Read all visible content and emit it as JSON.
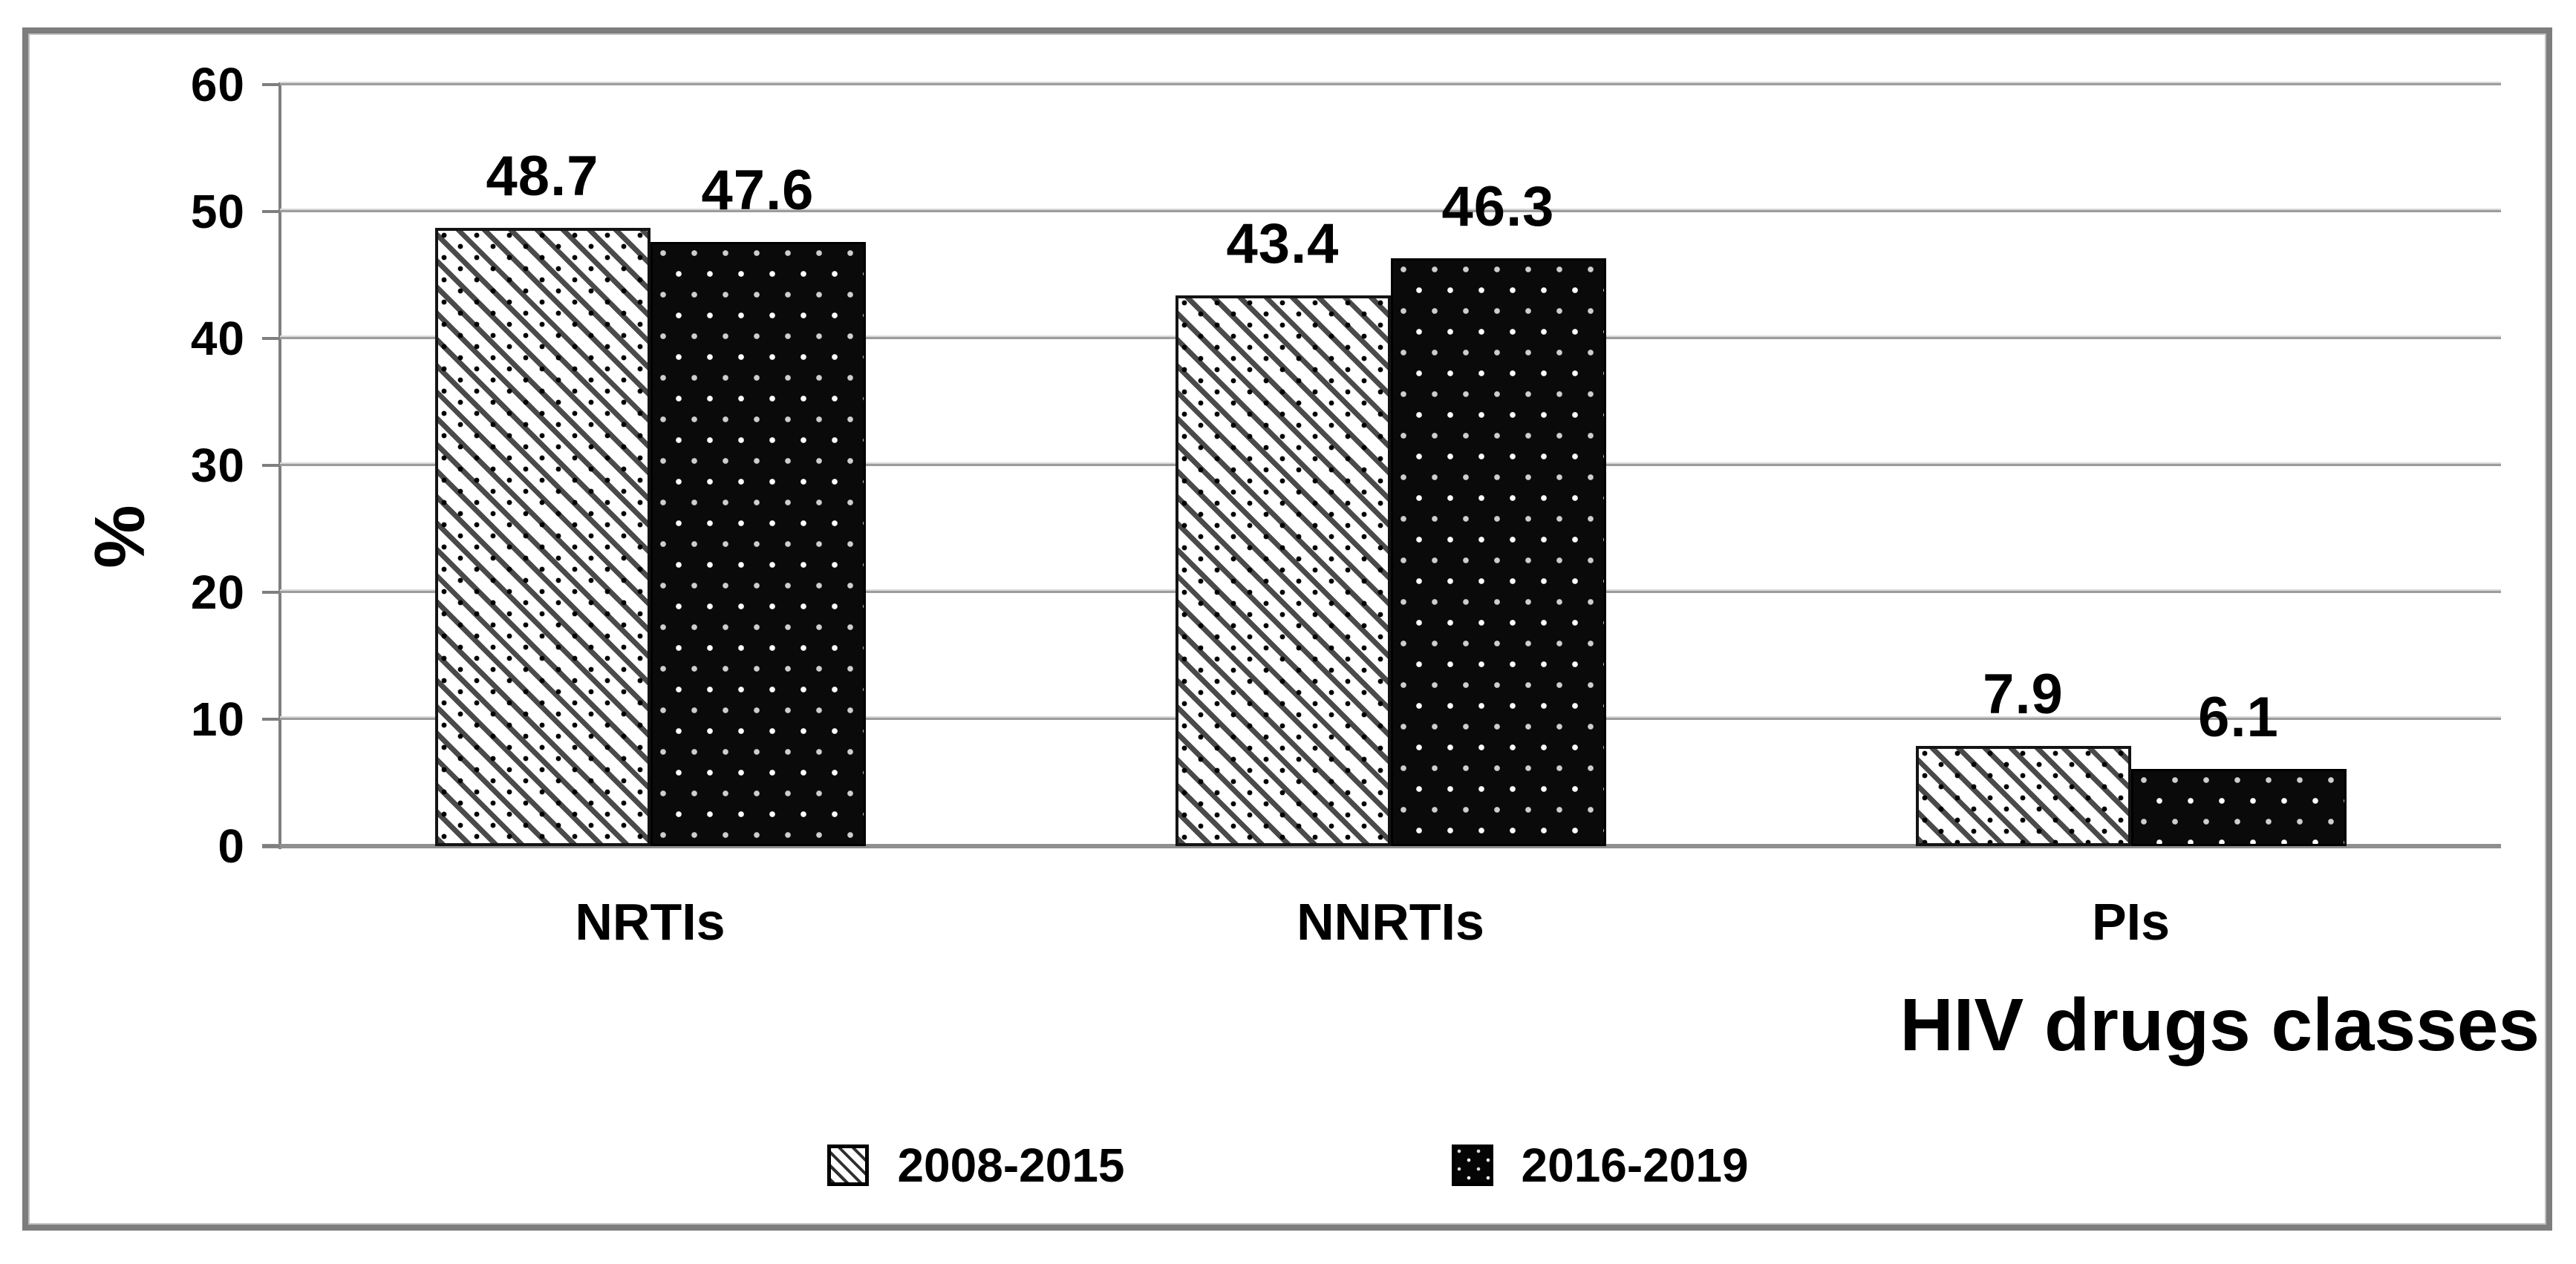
{
  "chart_data": {
    "type": "bar",
    "title": "",
    "categories": [
      "NRTIs",
      "NNRTIs",
      "PIs"
    ],
    "series": [
      {
        "name": "2008-2015",
        "pattern": "white-diagonal-hatch",
        "values": [
          48.7,
          43.4,
          7.9
        ]
      },
      {
        "name": "2016-2019",
        "pattern": "black-white-dots",
        "values": [
          47.6,
          46.3,
          6.1
        ]
      }
    ],
    "xlabel": "HIV drugs classes",
    "ylabel": "%",
    "ylim": [
      0,
      60
    ],
    "yticks": [
      0,
      10,
      20,
      30,
      40,
      50,
      60
    ],
    "grid": true,
    "legend_position": "bottom-center",
    "colors": {
      "text": "#000000",
      "gridline": "#9c9c9c",
      "axis": "#7f7f7f",
      "frame": "#7d7d7d",
      "series1_fill": "#ffffff",
      "series1_stripe": "#4a4a4a",
      "series2_fill": "#0a0a0a",
      "series2_dot": "#ffffff"
    }
  },
  "legend": {
    "items": [
      {
        "label": "2008-2015"
      },
      {
        "label": "2016-2019"
      }
    ]
  }
}
